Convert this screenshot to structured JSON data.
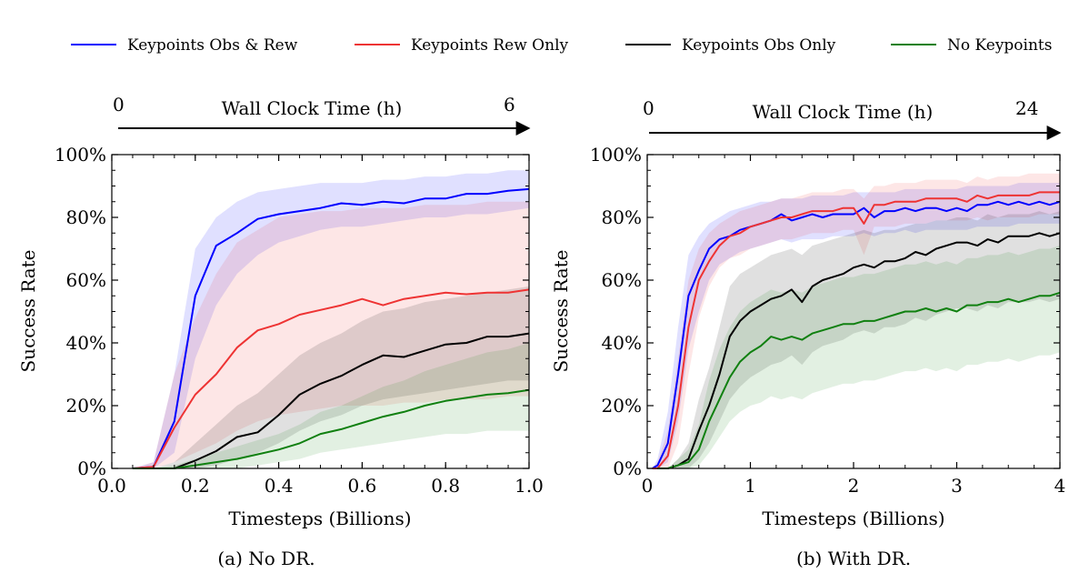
{
  "legend": {
    "placement": "top",
    "entries": [
      {
        "label": "Keypoints Obs & Rew",
        "color": "#0000ff"
      },
      {
        "label": "Keypoints Rew Only",
        "color": "#ee3333"
      },
      {
        "label": "Keypoints Obs Only",
        "color": "#000000"
      },
      {
        "label": "No Keypoints",
        "color": "#108010"
      }
    ]
  },
  "chart_data": [
    {
      "type": "line",
      "caption": "(a) No DR.",
      "wall_clock": {
        "label": "Wall Clock Time (h)",
        "start": "0",
        "end": "6"
      },
      "xlabel": "Timesteps (Billions)",
      "ylabel": "Success Rate",
      "xlim": [
        0,
        1.0
      ],
      "ylim": [
        0,
        100
      ],
      "xticks": [
        "0.0",
        "0.2",
        "0.4",
        "0.6",
        "0.8",
        "1.0"
      ],
      "xtick_values": [
        0,
        0.2,
        0.4,
        0.6,
        0.8,
        1.0
      ],
      "yticks": [
        "0%",
        "20%",
        "40%",
        "60%",
        "80%",
        "100%"
      ],
      "ytick_values": [
        0,
        20,
        40,
        60,
        80,
        100
      ],
      "grid": false,
      "series": [
        {
          "name": "Keypoints Obs & Rew",
          "color": "#0000ff",
          "x": [
            0.05,
            0.1,
            0.15,
            0.2,
            0.25,
            0.3,
            0.35,
            0.4,
            0.45,
            0.5,
            0.55,
            0.6,
            0.65,
            0.7,
            0.75,
            0.8,
            0.85,
            0.9,
            0.95,
            1.0
          ],
          "y": [
            0,
            0.5,
            15,
            55,
            71,
            75,
            79.5,
            81,
            82,
            83,
            84.5,
            84,
            85,
            84.5,
            86,
            86,
            87.5,
            87.5,
            88.5,
            89
          ],
          "lower": [
            0,
            0,
            5,
            35,
            52,
            62,
            68,
            72,
            74,
            76,
            77,
            77,
            78,
            79,
            80,
            80,
            81,
            81,
            82,
            83
          ],
          "upper": [
            0,
            2,
            30,
            70,
            80,
            85,
            88,
            89,
            90,
            91,
            91,
            91,
            92,
            92,
            93,
            93,
            94,
            94,
            95,
            95
          ]
        },
        {
          "name": "Keypoints Rew Only",
          "color": "#ee3333",
          "x": [
            0.05,
            0.1,
            0.15,
            0.2,
            0.25,
            0.3,
            0.35,
            0.4,
            0.45,
            0.5,
            0.55,
            0.6,
            0.65,
            0.7,
            0.75,
            0.8,
            0.85,
            0.9,
            0.95,
            1.0
          ],
          "y": [
            0,
            0.5,
            13,
            23.5,
            30,
            38.5,
            44,
            46,
            49,
            50.5,
            52,
            54,
            52,
            54,
            55,
            56,
            55.5,
            56,
            56,
            57
          ],
          "lower": [
            0,
            0,
            2,
            5,
            8,
            12,
            15,
            17,
            18,
            19,
            20,
            20,
            20,
            21,
            21,
            22,
            22,
            22,
            23,
            23
          ],
          "upper": [
            0,
            2,
            30,
            48,
            62,
            72,
            76,
            80,
            81,
            82,
            82,
            83,
            83,
            83,
            84,
            84,
            84,
            85,
            85,
            85
          ]
        },
        {
          "name": "Keypoints Obs Only",
          "color": "#000000",
          "x": [
            0.05,
            0.1,
            0.15,
            0.2,
            0.25,
            0.3,
            0.35,
            0.4,
            0.45,
            0.5,
            0.55,
            0.6,
            0.65,
            0.7,
            0.75,
            0.8,
            0.85,
            0.9,
            0.95,
            1.0
          ],
          "y": [
            0,
            0,
            0,
            2.5,
            5.5,
            10,
            11.5,
            17,
            23.5,
            27,
            29.5,
            33,
            36,
            35.5,
            37.5,
            39.5,
            40,
            42,
            42,
            43
          ],
          "lower": [
            0,
            0,
            0,
            0,
            1,
            3,
            5,
            8,
            12,
            15,
            17,
            20,
            22,
            23,
            24,
            25,
            26,
            27,
            28,
            28
          ],
          "upper": [
            0,
            0,
            2,
            8,
            14,
            20,
            24,
            30,
            36,
            40,
            43,
            47,
            50,
            51,
            53,
            54,
            55,
            56,
            57,
            58
          ]
        },
        {
          "name": "No Keypoints",
          "color": "#108010",
          "x": [
            0.05,
            0.1,
            0.15,
            0.2,
            0.25,
            0.3,
            0.35,
            0.4,
            0.45,
            0.5,
            0.55,
            0.6,
            0.65,
            0.7,
            0.75,
            0.8,
            0.85,
            0.9,
            0.95,
            1.0
          ],
          "y": [
            0,
            0,
            0,
            1,
            2,
            3,
            4.5,
            6,
            8,
            11,
            12.5,
            14.5,
            16.5,
            18,
            20,
            21.5,
            22.5,
            23.5,
            24,
            25
          ],
          "lower": [
            0,
            0,
            0,
            0,
            0,
            0,
            1,
            2,
            3,
            5,
            6,
            7,
            8,
            9,
            10,
            11,
            11,
            12,
            12,
            12
          ],
          "upper": [
            0,
            0,
            1,
            3,
            5,
            7,
            9,
            11,
            14,
            18,
            20,
            23,
            26,
            28,
            31,
            33,
            35,
            37,
            38,
            40
          ]
        }
      ]
    },
    {
      "type": "line",
      "caption": "(b) With DR.",
      "wall_clock": {
        "label": "Wall Clock Time (h)",
        "start": "0",
        "end": "24"
      },
      "xlabel": "Timesteps (Billions)",
      "ylabel": "Success Rate",
      "xlim": [
        0,
        4
      ],
      "ylim": [
        0,
        100
      ],
      "xticks": [
        "0",
        "1",
        "2",
        "3",
        "4"
      ],
      "xtick_values": [
        0,
        1,
        2,
        3,
        4
      ],
      "yticks": [
        "0%",
        "20%",
        "40%",
        "60%",
        "80%",
        "100%"
      ],
      "ytick_values": [
        0,
        20,
        40,
        60,
        80,
        100
      ],
      "grid": false,
      "series": [
        {
          "name": "Keypoints Obs & Rew",
          "color": "#0000ff",
          "x": [
            0.05,
            0.1,
            0.2,
            0.3,
            0.4,
            0.5,
            0.6,
            0.7,
            0.8,
            0.9,
            1.0,
            1.1,
            1.2,
            1.3,
            1.4,
            1.5,
            1.6,
            1.7,
            1.8,
            1.9,
            2.0,
            2.1,
            2.2,
            2.3,
            2.4,
            2.5,
            2.6,
            2.7,
            2.8,
            2.9,
            3.0,
            3.1,
            3.2,
            3.3,
            3.4,
            3.5,
            3.6,
            3.7,
            3.8,
            3.9,
            4.0
          ],
          "y": [
            0,
            1,
            8,
            30,
            55,
            63,
            70,
            73,
            74,
            76,
            77,
            78,
            79,
            81,
            79,
            80,
            81,
            80,
            81,
            81,
            81,
            83,
            80,
            82,
            82,
            83,
            82,
            83,
            83,
            82,
            83,
            82,
            84,
            84,
            85,
            84,
            85,
            84,
            85,
            84,
            85
          ],
          "lower": [
            0,
            0,
            2,
            15,
            38,
            50,
            60,
            65,
            67,
            69,
            70,
            71,
            72,
            73,
            72,
            73,
            73,
            73,
            74,
            74,
            74,
            75,
            74,
            75,
            75,
            76,
            75,
            76,
            76,
            76,
            76,
            76,
            77,
            77,
            77,
            77,
            78,
            78,
            78,
            78,
            78
          ],
          "upper": [
            0,
            3,
            18,
            45,
            68,
            74,
            78,
            80,
            82,
            83,
            84,
            85,
            85,
            86,
            86,
            86,
            87,
            87,
            87,
            87,
            88,
            88,
            88,
            88,
            88,
            89,
            89,
            89,
            89,
            89,
            89,
            90,
            90,
            90,
            90,
            90,
            91,
            91,
            91,
            91,
            91
          ]
        },
        {
          "name": "Keypoints Rew Only",
          "color": "#ee3333",
          "x": [
            0.05,
            0.1,
            0.2,
            0.3,
            0.4,
            0.5,
            0.6,
            0.7,
            0.8,
            0.9,
            1.0,
            1.1,
            1.2,
            1.3,
            1.4,
            1.5,
            1.6,
            1.7,
            1.8,
            1.9,
            2.0,
            2.1,
            2.2,
            2.3,
            2.4,
            2.5,
            2.6,
            2.7,
            2.8,
            2.9,
            3.0,
            3.1,
            3.2,
            3.3,
            3.4,
            3.5,
            3.6,
            3.7,
            3.8,
            3.9,
            4.0
          ],
          "y": [
            0,
            0,
            4,
            20,
            45,
            60,
            66,
            71,
            74,
            75,
            77,
            78,
            79,
            80,
            80,
            81,
            82,
            82,
            82,
            83,
            83,
            78,
            84,
            84,
            85,
            85,
            85,
            86,
            86,
            86,
            86,
            85,
            87,
            86,
            87,
            87,
            87,
            87,
            88,
            88,
            88
          ],
          "lower": [
            0,
            0,
            0,
            8,
            30,
            48,
            58,
            64,
            67,
            68,
            70,
            71,
            72,
            73,
            73,
            74,
            75,
            75,
            75,
            76,
            76,
            68,
            77,
            77,
            77,
            78,
            78,
            78,
            79,
            79,
            79,
            79,
            80,
            79,
            80,
            80,
            80,
            80,
            81,
            81,
            81
          ],
          "upper": [
            0,
            2,
            12,
            35,
            60,
            70,
            75,
            78,
            80,
            82,
            83,
            84,
            85,
            86,
            86,
            87,
            88,
            88,
            88,
            89,
            89,
            86,
            90,
            90,
            91,
            91,
            91,
            92,
            92,
            92,
            92,
            91,
            93,
            92,
            93,
            93,
            93,
            94,
            94,
            94,
            94
          ]
        },
        {
          "name": "Keypoints Obs Only",
          "color": "#000000",
          "x": [
            0.1,
            0.2,
            0.3,
            0.4,
            0.5,
            0.6,
            0.7,
            0.8,
            0.9,
            1.0,
            1.1,
            1.2,
            1.3,
            1.4,
            1.5,
            1.6,
            1.7,
            1.8,
            1.9,
            2.0,
            2.1,
            2.2,
            2.3,
            2.4,
            2.5,
            2.6,
            2.7,
            2.8,
            2.9,
            3.0,
            3.1,
            3.2,
            3.3,
            3.4,
            3.5,
            3.6,
            3.7,
            3.8,
            3.9,
            4.0
          ],
          "y": [
            0,
            0,
            1,
            3,
            12,
            20,
            30,
            42,
            47,
            50,
            52,
            54,
            55,
            57,
            53,
            58,
            60,
            61,
            62,
            64,
            65,
            64,
            66,
            66,
            67,
            69,
            68,
            70,
            71,
            72,
            72,
            71,
            73,
            72,
            74,
            74,
            74,
            75,
            74,
            75
          ],
          "lower": [
            0,
            0,
            0,
            0,
            3,
            8,
            15,
            22,
            26,
            29,
            31,
            33,
            34,
            36,
            33,
            37,
            39,
            40,
            41,
            43,
            44,
            43,
            45,
            45,
            46,
            48,
            47,
            49,
            50,
            51,
            51,
            50,
            52,
            51,
            53,
            53,
            53,
            54,
            53,
            54
          ],
          "upper": [
            0,
            0,
            3,
            8,
            22,
            32,
            45,
            58,
            62,
            64,
            66,
            68,
            69,
            70,
            68,
            71,
            72,
            73,
            74,
            75,
            76,
            75,
            76,
            76,
            77,
            78,
            78,
            79,
            79,
            80,
            80,
            79,
            81,
            80,
            81,
            81,
            81,
            82,
            81,
            82
          ]
        },
        {
          "name": "No Keypoints",
          "color": "#108010",
          "x": [
            0.1,
            0.2,
            0.3,
            0.4,
            0.5,
            0.6,
            0.7,
            0.8,
            0.9,
            1.0,
            1.1,
            1.2,
            1.3,
            1.4,
            1.5,
            1.6,
            1.7,
            1.8,
            1.9,
            2.0,
            2.1,
            2.2,
            2.3,
            2.4,
            2.5,
            2.6,
            2.7,
            2.8,
            2.9,
            3.0,
            3.1,
            3.2,
            3.3,
            3.4,
            3.5,
            3.6,
            3.7,
            3.8,
            3.9,
            4.0
          ],
          "y": [
            0,
            0,
            1,
            2,
            6,
            15,
            22,
            29,
            34,
            37,
            39,
            42,
            41,
            42,
            41,
            43,
            44,
            45,
            46,
            46,
            47,
            47,
            48,
            49,
            50,
            50,
            51,
            50,
            51,
            50,
            52,
            52,
            53,
            53,
            54,
            53,
            54,
            55,
            55,
            56
          ],
          "lower": [
            0,
            0,
            0,
            0,
            1,
            5,
            10,
            15,
            18,
            20,
            21,
            23,
            22,
            23,
            22,
            24,
            25,
            26,
            27,
            27,
            28,
            28,
            29,
            30,
            31,
            31,
            32,
            31,
            32,
            31,
            33,
            33,
            34,
            34,
            35,
            34,
            35,
            36,
            36,
            37
          ],
          "upper": [
            0,
            0,
            3,
            6,
            14,
            28,
            38,
            45,
            50,
            53,
            55,
            57,
            56,
            57,
            56,
            58,
            59,
            60,
            61,
            61,
            62,
            62,
            63,
            64,
            65,
            65,
            66,
            65,
            66,
            65,
            67,
            67,
            68,
            68,
            69,
            68,
            69,
            70,
            70,
            71
          ]
        }
      ]
    }
  ]
}
